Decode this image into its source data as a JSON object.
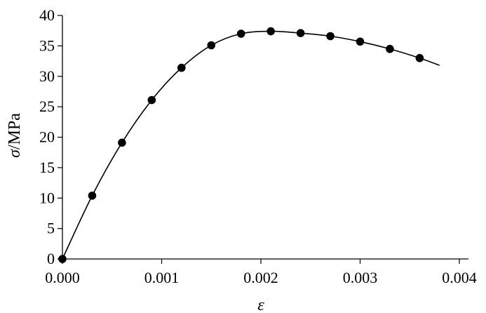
{
  "chart_data": {
    "type": "scatter",
    "title": "",
    "xlabel": "ε",
    "ylabel_symbol": "σ",
    "ylabel_unit": "/MPa",
    "xlim": [
      0,
      0.004
    ],
    "ylim": [
      0,
      40
    ],
    "x_ticks": [
      0,
      0.001,
      0.002,
      0.003,
      0.004
    ],
    "x_tick_labels": [
      "0.000",
      "0.001",
      "0.002",
      "0.003",
      "0.004"
    ],
    "y_ticks": [
      0,
      5,
      10,
      15,
      20,
      25,
      30,
      35,
      40
    ],
    "y_tick_labels": [
      "0",
      "5",
      "10",
      "15",
      "20",
      "25",
      "30",
      "35",
      "40"
    ],
    "grid": false,
    "series": [
      {
        "type": "scatter",
        "x": [
          0,
          0.0003,
          0.0006,
          0.0009,
          0.0012,
          0.0015,
          0.0018,
          0.0021,
          0.0024,
          0.0027,
          0.003,
          0.0033,
          0.0036
        ],
        "y": [
          0,
          10.4,
          19.1,
          26.1,
          31.4,
          35.1,
          37.0,
          37.4,
          37.1,
          36.6,
          35.7,
          34.5,
          33.0
        ]
      },
      {
        "type": "line",
        "x": [
          0,
          0.0003,
          0.0006,
          0.0009,
          0.0012,
          0.0015,
          0.0018,
          0.0021,
          0.0024,
          0.0027,
          0.003,
          0.0033,
          0.0036,
          0.0038
        ],
        "y": [
          0,
          10.4,
          19.1,
          26.1,
          31.4,
          35.1,
          37.0,
          37.4,
          37.1,
          36.6,
          35.7,
          34.5,
          33.0,
          31.8
        ]
      }
    ]
  }
}
